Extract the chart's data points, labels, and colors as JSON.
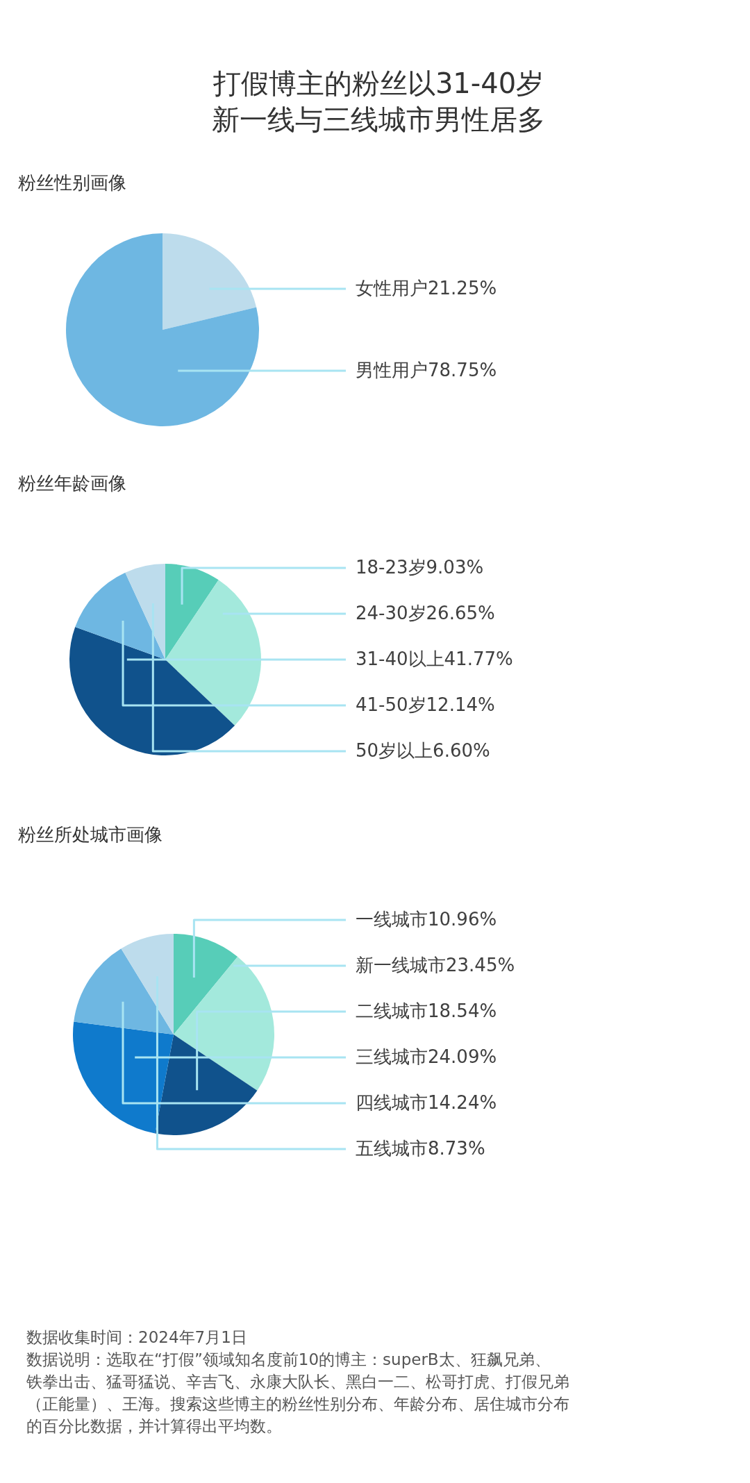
{
  "chart_data": [
    {
      "type": "pie",
      "title": "打假博主的粉丝以31-40岁新一线与三线城市男性居多",
      "subtitle": "粉丝性别画像",
      "categories": [
        "女性用户",
        "男性用户"
      ],
      "values": [
        21.25,
        78.75
      ],
      "colors": [
        "#bddcec",
        "#6eb7e2"
      ],
      "value_labels": [
        "21.25%",
        "78.75%"
      ]
    },
    {
      "type": "pie",
      "title": "粉丝年龄画像",
      "categories": [
        "18-23岁",
        "24-30岁",
        "31-40以上",
        "41-50岁",
        "50岁以上"
      ],
      "values": [
        9.03,
        26.65,
        41.77,
        12.14,
        6.6
      ],
      "colors": [
        "#57cdb8",
        "#a3e9dc",
        "#10528c",
        "#6eb7e2",
        "#bddcec"
      ],
      "value_labels": [
        "9.03%",
        "26.65%",
        "41.77%",
        "12.14%",
        "6.60%"
      ]
    },
    {
      "type": "pie",
      "title": "粉丝所处城市画像",
      "categories": [
        "一线城市",
        "新一线城市",
        "二线城市",
        "三线城市",
        "四线城市",
        "五线城市"
      ],
      "values": [
        10.96,
        23.45,
        18.54,
        24.09,
        14.24,
        8.73
      ],
      "colors": [
        "#57cdb8",
        "#a3e9dc",
        "#10528c",
        "#0f7acc",
        "#6eb7e2",
        "#bddcec"
      ],
      "value_labels": [
        "10.96%",
        "23.45%",
        "18.54%",
        "24.09%",
        "14.24%",
        "8.73%"
      ],
      "annotations": [
        "数据收集时间：2024年7月1日",
        "数据说明：选取在“打假”领域知名度前10的博主：superB太、狂飙兄弟、铁拳出击、猛哥猛说、辛吉飞、永康大队长、黑白一二、松哥打虎、打假兄弟（正能量）、王海。搜索这些博主的粉丝性别分布、年龄分布、居住城市分布的百分比数据，并计算得出平均数。"
      ]
    }
  ]
}
